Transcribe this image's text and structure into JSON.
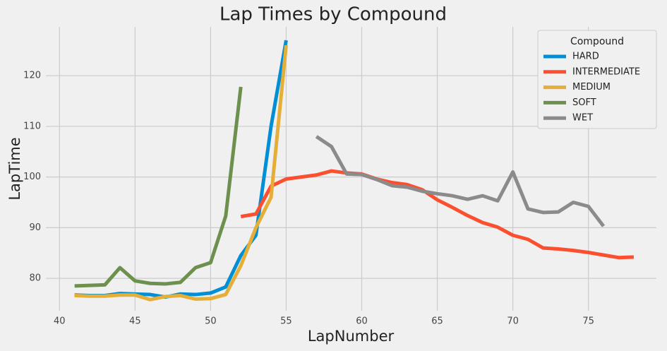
{
  "chart_data": {
    "type": "line",
    "title": "Lap Times by Compound",
    "x_label": "LapNumber",
    "y_label": "LapTime",
    "xlim": [
      39.1,
      79.5
    ],
    "ylim": [
      73.6,
      129.65
    ],
    "xticks": [
      40,
      45,
      50,
      55,
      60,
      65,
      70,
      75
    ],
    "yticks": [
      80,
      90,
      100,
      110,
      120
    ],
    "grid": true,
    "legend_title": "Compound",
    "legend_position": "upper-right",
    "series": [
      {
        "name": "HARD",
        "color": "#008fd5",
        "x": [
          41,
          42,
          43,
          44,
          45,
          46,
          47,
          48,
          49,
          50,
          51,
          52,
          53,
          54,
          55
        ],
        "values": [
          76.7,
          76.6,
          76.6,
          77.0,
          76.9,
          76.8,
          76.3,
          76.9,
          76.8,
          77.1,
          78.3,
          84.5,
          88.5,
          110,
          127
        ]
      },
      {
        "name": "INTERMEDIATE",
        "color": "#fc4f30",
        "x": [
          52,
          53,
          54,
          55,
          56,
          57,
          58,
          59,
          60,
          61,
          62,
          63,
          64,
          65,
          66,
          67,
          68,
          69,
          70,
          71,
          72,
          73,
          74,
          75,
          76,
          77,
          78
        ],
        "values": [
          92.2,
          92.7,
          98.2,
          99.6,
          100,
          100.4,
          101.2,
          100.8,
          100.6,
          99.6,
          98.9,
          98.5,
          97.5,
          95.5,
          94,
          92.4,
          91,
          90.1,
          88.5,
          87.7,
          86,
          85.8,
          85.5,
          85.1,
          84.6,
          84.1,
          84.2
        ]
      },
      {
        "name": "MEDIUM",
        "color": "#e5ae38",
        "x": [
          41,
          42,
          43,
          44,
          45,
          46,
          47,
          48,
          49,
          50,
          51,
          52,
          53,
          54,
          55
        ],
        "values": [
          76.6,
          76.5,
          76.5,
          76.7,
          76.7,
          75.8,
          76.4,
          76.6,
          75.9,
          76.0,
          76.8,
          82.5,
          90,
          96,
          126
        ]
      },
      {
        "name": "SOFT",
        "color": "#6d904f",
        "x": [
          41,
          42,
          43,
          44,
          45,
          46,
          47,
          48,
          49,
          50,
          51,
          52
        ],
        "values": [
          78.5,
          78.6,
          78.7,
          82.1,
          79.5,
          79,
          78.9,
          79.2,
          82.1,
          83.1,
          92.3,
          117.8
        ]
      },
      {
        "name": "WET",
        "color": "#8b8b8b",
        "x": [
          57,
          58,
          59,
          60,
          61,
          62,
          63,
          64,
          65,
          66,
          67,
          68,
          69,
          70,
          71,
          72,
          73,
          74,
          75,
          76
        ],
        "values": [
          108,
          106,
          100.6,
          100.5,
          99.5,
          98.3,
          98,
          97.2,
          96.7,
          96.3,
          95.6,
          96.3,
          95.3,
          101,
          93.7,
          93,
          93.1,
          95,
          94.2,
          90.3
        ]
      }
    ]
  }
}
